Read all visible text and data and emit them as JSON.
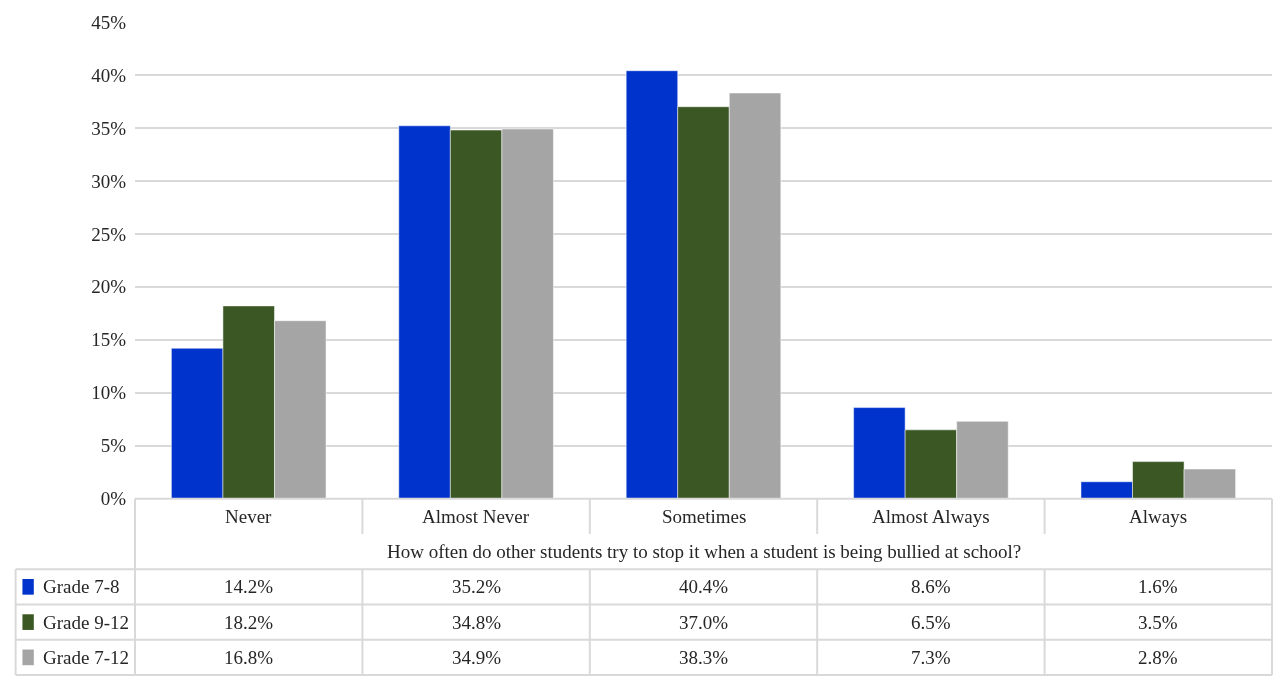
{
  "chart_data": {
    "type": "bar",
    "categories": [
      "Never",
      "Almost Never",
      "Sometimes",
      "Almost Always",
      "Always"
    ],
    "xlabel": "How often do other students try to stop it when a student is being bullied at school?",
    "series": [
      {
        "name": "Grade 7-8",
        "color": "#0033cc",
        "values": [
          14.2,
          35.2,
          40.4,
          8.6,
          1.6
        ],
        "value_labels": [
          "14.2%",
          "35.2%",
          "40.4%",
          "8.6%",
          "1.6%"
        ]
      },
      {
        "name": "Grade 9-12",
        "color": "#3a5724",
        "values": [
          18.2,
          34.8,
          37.0,
          6.5,
          3.5
        ],
        "value_labels": [
          "18.2%",
          "34.8%",
          "37.0%",
          "6.5%",
          "3.5%"
        ]
      },
      {
        "name": "Grade 7-12",
        "color": "#a5a5a5",
        "values": [
          16.8,
          34.9,
          38.3,
          7.3,
          2.8
        ],
        "value_labels": [
          "16.8%",
          "34.9%",
          "38.3%",
          "7.3%",
          "2.8%"
        ]
      }
    ],
    "ylim": [
      0,
      45
    ],
    "yticks": [
      {
        "value": 0,
        "label": "0%"
      },
      {
        "value": 5,
        "label": "5%"
      },
      {
        "value": 10,
        "label": "10%"
      },
      {
        "value": 15,
        "label": "15%"
      },
      {
        "value": 20,
        "label": "20%"
      },
      {
        "value": 25,
        "label": "25%"
      },
      {
        "value": 30,
        "label": "30%"
      },
      {
        "value": 35,
        "label": "35%"
      },
      {
        "value": 40,
        "label": "40%"
      },
      {
        "value": 45,
        "label": "45%"
      }
    ],
    "grid": "y",
    "legend": "bottom"
  }
}
